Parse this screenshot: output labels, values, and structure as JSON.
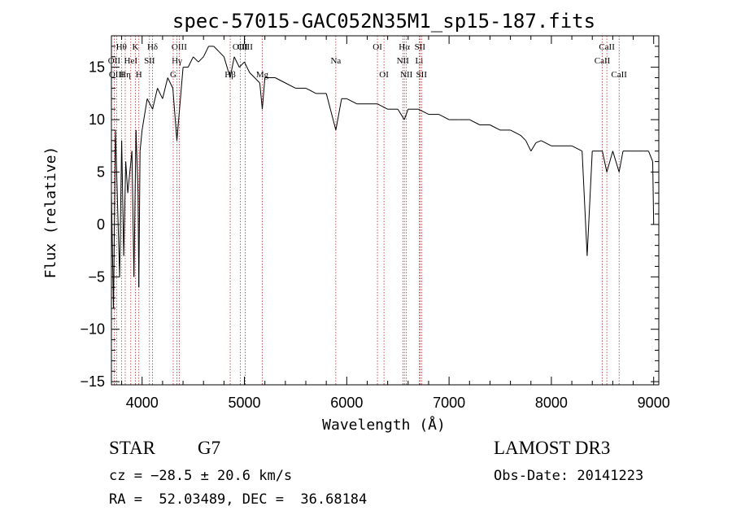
{
  "chart_data": {
    "type": "line",
    "title": "spec-57015-GAC052N35M1_sp15-187.fits",
    "xlabel": "Wavelength (Å)",
    "ylabel": "Flux (relative)",
    "xlim": [
      3700,
      9050
    ],
    "ylim": [
      -15.3,
      18
    ],
    "xticks": [
      4000,
      5000,
      6000,
      7000,
      8000,
      9000
    ],
    "yticks": [
      -15,
      -10,
      -5,
      0,
      5,
      10,
      15
    ],
    "grid": false,
    "series": [
      {
        "name": "flux",
        "x": [
          3700,
          3720,
          3740,
          3760,
          3780,
          3800,
          3820,
          3840,
          3860,
          3880,
          3900,
          3920,
          3940,
          3960,
          3968,
          3980,
          4000,
          4050,
          4102,
          4150,
          4200,
          4250,
          4300,
          4340,
          4400,
          4450,
          4500,
          4550,
          4600,
          4650,
          4700,
          4750,
          4800,
          4861,
          4900,
          4950,
          5000,
          5050,
          5100,
          5150,
          5175,
          5200,
          5300,
          5400,
          5500,
          5600,
          5700,
          5800,
          5893,
          5950,
          6000,
          6100,
          6200,
          6300,
          6400,
          6500,
          6563,
          6600,
          6700,
          6800,
          6900,
          7000,
          7100,
          7200,
          7300,
          7400,
          7500,
          7600,
          7700,
          7750,
          7800,
          7850,
          7900,
          8000,
          8100,
          8200,
          8300,
          8350,
          8400,
          8498,
          8542,
          8600,
          8662,
          8700,
          8800,
          8900,
          8950,
          8990,
          9000
        ],
        "y": [
          3,
          -8,
          9,
          2,
          -5,
          8,
          -3,
          6,
          3,
          5,
          7,
          -5,
          9,
          3,
          -6,
          7,
          9,
          12,
          11,
          13,
          12,
          14,
          13,
          8,
          15,
          15,
          16,
          15.5,
          16,
          17,
          17,
          16.5,
          16,
          14,
          16,
          15,
          15.5,
          14.5,
          14,
          13.5,
          11,
          14,
          14,
          13.5,
          13,
          13,
          12.5,
          12.5,
          9,
          12,
          12,
          11.5,
          11.5,
          11.5,
          11,
          11,
          10,
          11,
          11,
          10.5,
          10.5,
          10,
          10,
          10,
          9.5,
          9.5,
          9,
          9,
          8.5,
          8,
          7,
          7.8,
          8,
          7.5,
          7.5,
          7.5,
          7,
          -3,
          7,
          7,
          5,
          7,
          5,
          7,
          7,
          7,
          7,
          6,
          0
        ]
      }
    ],
    "lines": [
      {
        "label": "Hθ",
        "x": 3798,
        "row": 1
      },
      {
        "label": "OII",
        "x": 3727,
        "row": 2
      },
      {
        "label": "OIII",
        "x": 3750,
        "row": 3
      },
      {
        "label": "Hη",
        "x": 3835,
        "row": 3
      },
      {
        "label": "HeI",
        "x": 3889,
        "row": 2
      },
      {
        "label": "K",
        "x": 3934,
        "row": 1
      },
      {
        "label": "H",
        "x": 3968,
        "row": 3
      },
      {
        "label": "SII",
        "x": 4072,
        "row": 2
      },
      {
        "label": "Hδ",
        "x": 4102,
        "row": 1
      },
      {
        "label": "OIII",
        "x": 4363,
        "row": 1
      },
      {
        "label": "Hγ",
        "x": 4340,
        "row": 2
      },
      {
        "label": "G",
        "x": 4304,
        "row": 3
      },
      {
        "label": "Hβ",
        "x": 4861,
        "row": 3
      },
      {
        "label": "OIII",
        "x": 4959,
        "row": 1
      },
      {
        "label": "OIII",
        "x": 5007,
        "row": 1
      },
      {
        "label": "Mg",
        "x": 5175,
        "row": 3
      },
      {
        "label": "Na",
        "x": 5893,
        "row": 2
      },
      {
        "label": "OI",
        "x": 6300,
        "row": 1
      },
      {
        "label": "OI",
        "x": 6364,
        "row": 3
      },
      {
        "label": "Hα",
        "x": 6563,
        "row": 1
      },
      {
        "label": "NII",
        "x": 6548,
        "row": 2
      },
      {
        "label": "NII",
        "x": 6583,
        "row": 3
      },
      {
        "label": "SII",
        "x": 6716,
        "row": 1
      },
      {
        "label": "Li",
        "x": 6708,
        "row": 2
      },
      {
        "label": "SII",
        "x": 6731,
        "row": 3
      },
      {
        "label": "CaII",
        "x": 8542,
        "row": 1
      },
      {
        "label": "CaII",
        "x": 8498,
        "row": 2
      },
      {
        "label": "CaII",
        "x": 8662,
        "row": 3
      }
    ]
  },
  "info": {
    "class_label": "STAR",
    "subclass": "G7",
    "survey": "LAMOST DR3",
    "cz": "cz = −28.5 ± 20.6 km/s",
    "obs_date": "Obs-Date: 20141223",
    "coords": "RA =  52.03489, DEC =  36.68184"
  }
}
